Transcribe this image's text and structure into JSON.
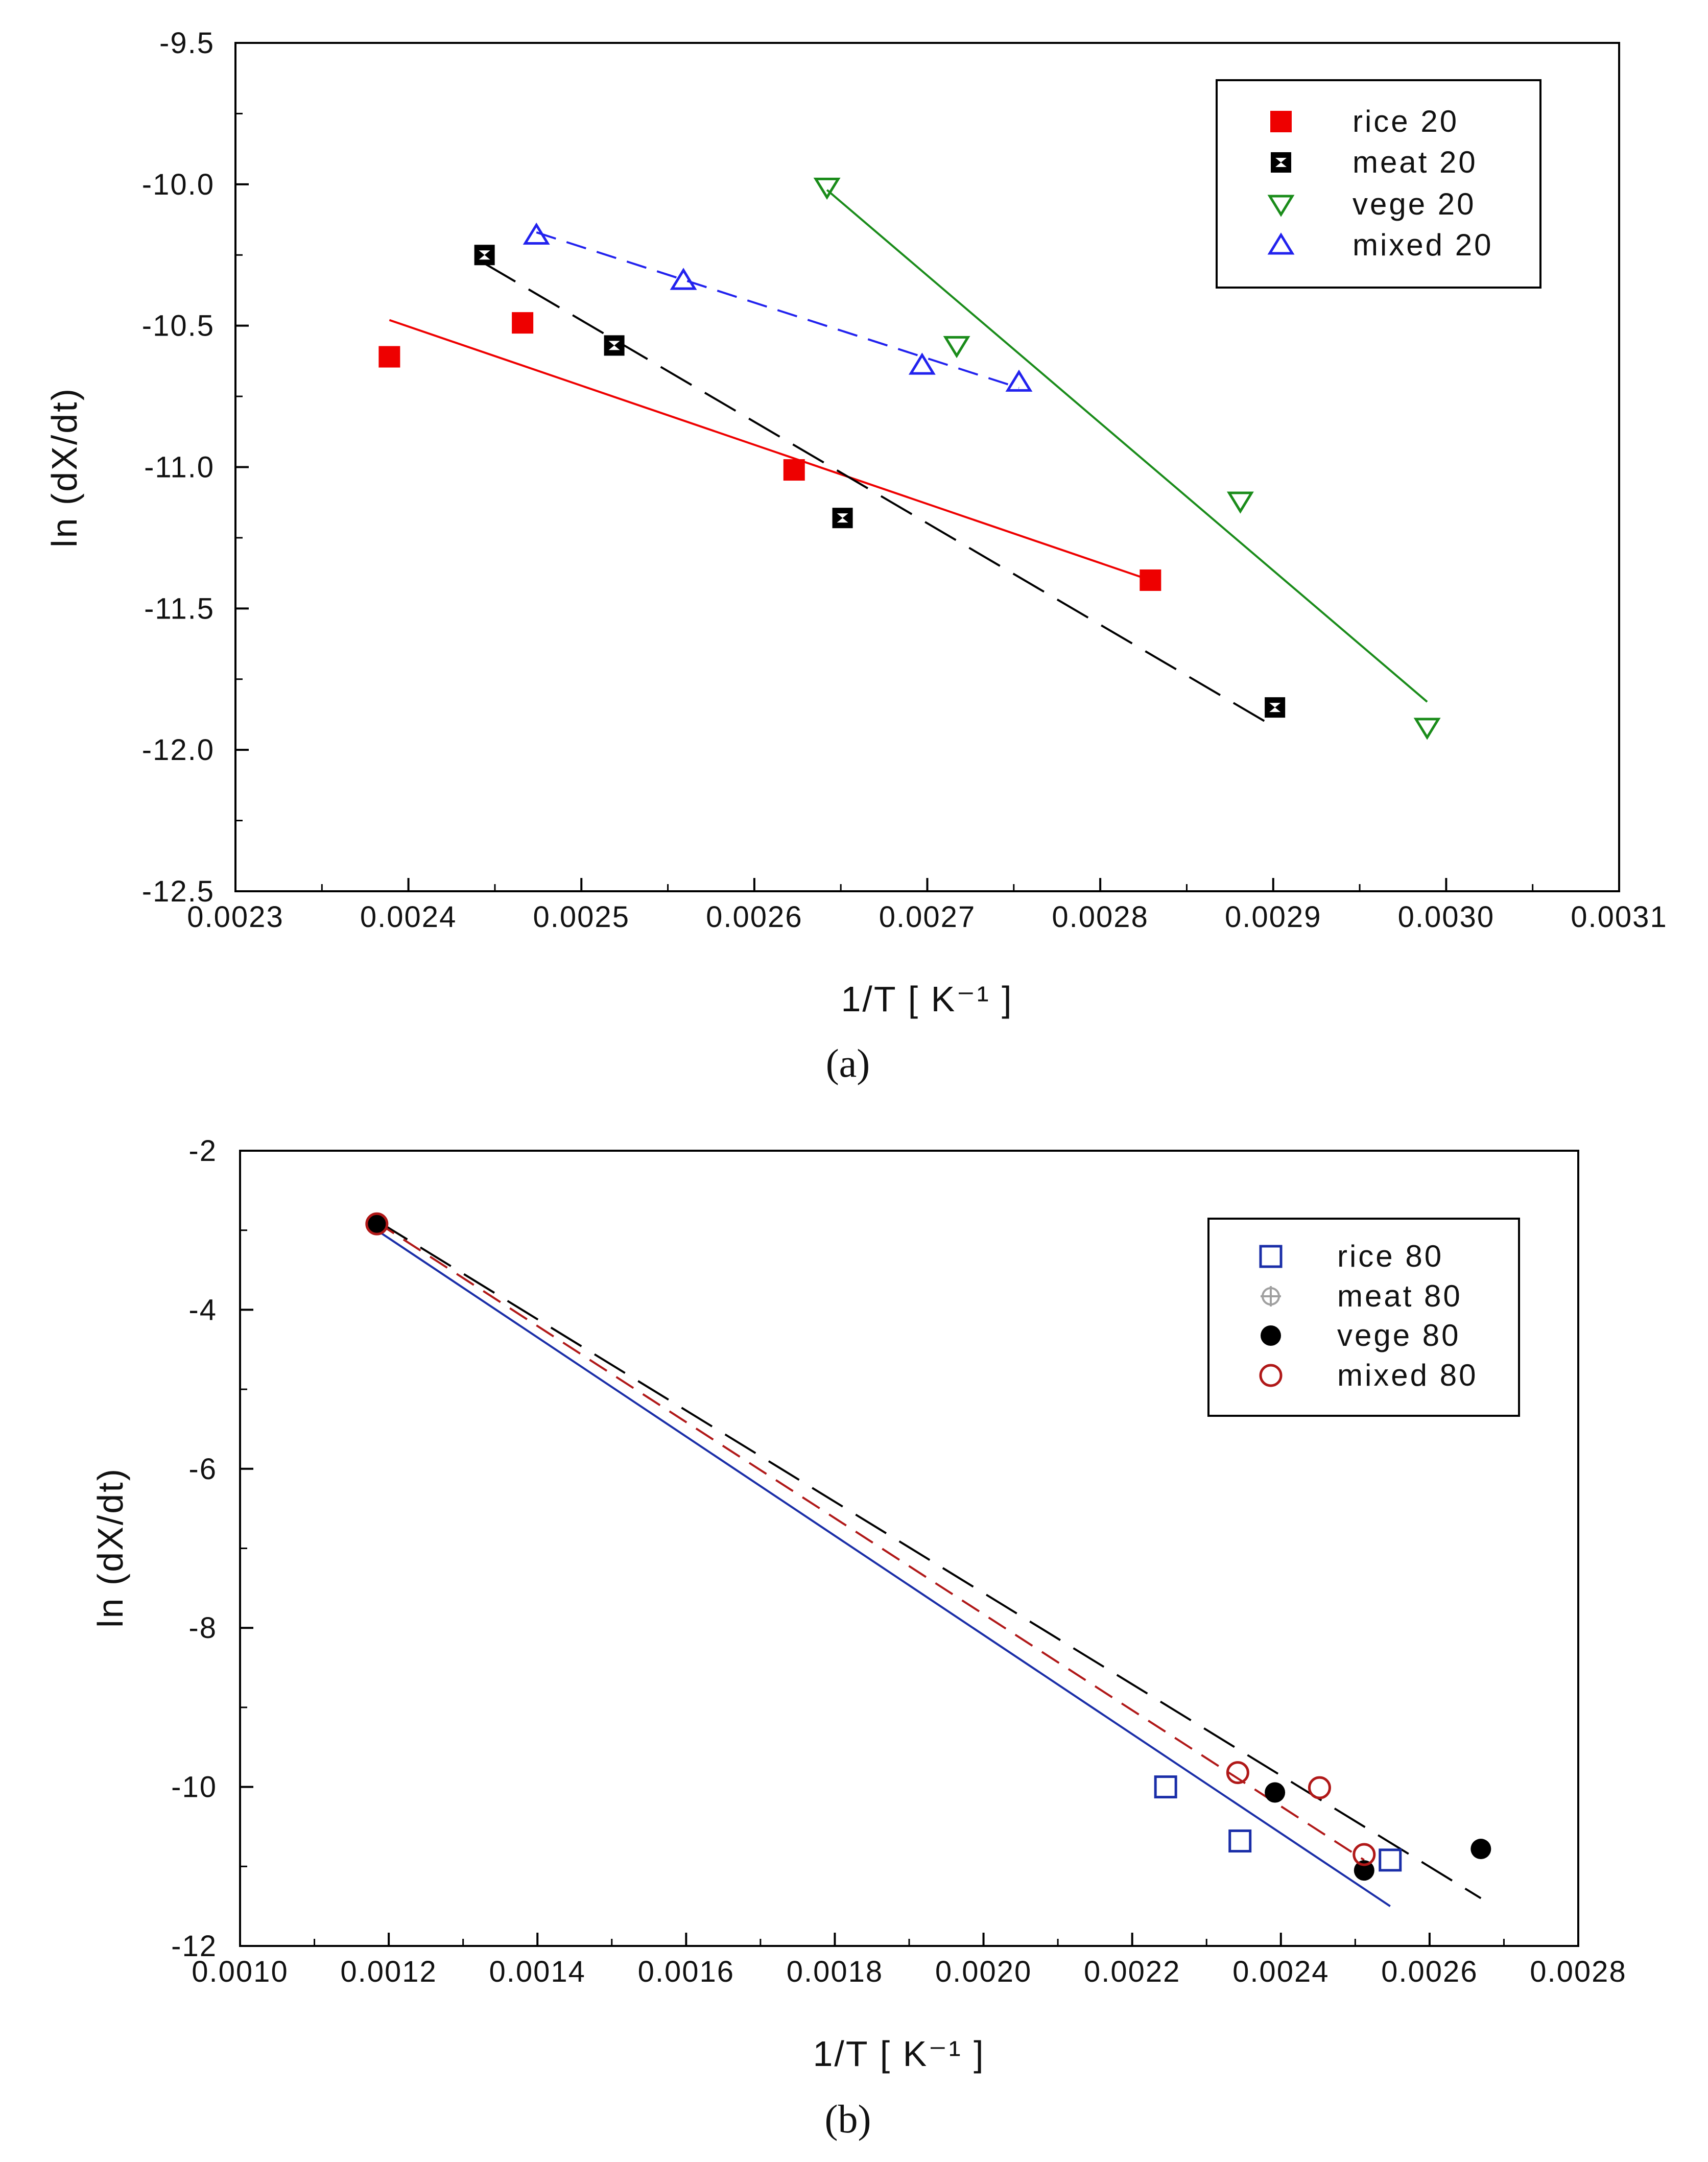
{
  "chart_data": [
    {
      "type": "scatter",
      "panel": "(a)",
      "xlabel": "1/T [ K⁻¹ ]",
      "ylabel": "ln (dX/dt)",
      "xlim": [
        0.0023,
        0.0031
      ],
      "ylim": [
        -12.5,
        -9.5
      ],
      "x_ticks": [
        "0.0023",
        "0.0024",
        "0.0025",
        "0.0026",
        "0.0027",
        "0.0028",
        "0.0029",
        "0.0030",
        "0.0031"
      ],
      "y_ticks": [
        "-9.5",
        "-10.0",
        "-10.5",
        "-11.0",
        "-11.5",
        "-12.0",
        "-12.5"
      ],
      "grid": false,
      "legend_position": "top-right",
      "series": [
        {
          "name": "rice 20",
          "marker": "filled-square",
          "color": "#ee0000",
          "line": "solid",
          "points": [
            [
              0.002389,
              -10.61
            ],
            [
              0.002466,
              -10.49
            ],
            [
              0.002623,
              -11.01
            ],
            [
              0.002829,
              -11.4
            ]
          ],
          "fit": [
            [
              0.002389,
              -10.48
            ],
            [
              0.002829,
              -11.4
            ]
          ]
        },
        {
          "name": "meat 20",
          "marker": "crossed-square",
          "color": "#000000",
          "line": "long-dash",
          "points": [
            [
              0.002444,
              -10.25
            ],
            [
              0.002519,
              -10.57
            ],
            [
              0.002651,
              -11.18
            ],
            [
              0.002901,
              -11.85
            ]
          ],
          "fit": [
            [
              0.002444,
              -10.28
            ],
            [
              0.002901,
              -11.92
            ]
          ]
        },
        {
          "name": "vege 20",
          "marker": "open-triangle-down",
          "color": "#1a8c1a",
          "line": "solid",
          "points": [
            [
              0.002642,
              -10.01
            ],
            [
              0.002717,
              -10.57
            ],
            [
              0.002881,
              -11.12
            ],
            [
              0.002989,
              -11.92
            ]
          ],
          "fit": [
            [
              0.002642,
              -10.02
            ],
            [
              0.002989,
              -11.83
            ]
          ]
        },
        {
          "name": "mixed 20",
          "marker": "open-triangle-up",
          "color": "#2222ee",
          "line": "dash",
          "points": [
            [
              0.002474,
              -10.18
            ],
            [
              0.002559,
              -10.34
            ],
            [
              0.002697,
              -10.64
            ],
            [
              0.002753,
              -10.7
            ]
          ],
          "fit": [
            [
              0.002474,
              -10.17
            ],
            [
              0.002753,
              -10.72
            ]
          ]
        }
      ]
    },
    {
      "type": "scatter",
      "panel": "(b)",
      "xlabel": "1/T [ K⁻¹ ]",
      "ylabel": "ln (dX/dt)",
      "xlim": [
        0.001,
        0.0028
      ],
      "ylim": [
        -12,
        -2
      ],
      "x_ticks": [
        "0.0010",
        "0.0012",
        "0.0014",
        "0.0016",
        "0.0018",
        "0.0020",
        "0.0022",
        "0.0024",
        "0.0026",
        "0.0028"
      ],
      "y_ticks": [
        "-2",
        "-4",
        "-6",
        "-8",
        "-10",
        "-12"
      ],
      "grid": false,
      "legend_position": "top-right",
      "series": [
        {
          "name": "rice 80",
          "marker": "open-square",
          "color": "#1a2ea8",
          "line": "solid",
          "points": [
            [
              0.002245,
              -10.0
            ],
            [
              0.002345,
              -10.68
            ],
            [
              0.002547,
              -10.92
            ]
          ],
          "fit": [
            [
              0.001184,
              -3.0
            ],
            [
              0.002547,
              -11.5
            ]
          ]
        },
        {
          "name": "meat 80",
          "marker": "crosshair-circle",
          "color": "#a0a0a0",
          "line": "none",
          "points": [
            [
              0.001184,
              -2.92
            ]
          ],
          "fit": []
        },
        {
          "name": "vege 80",
          "marker": "filled-circle",
          "color": "#000000",
          "line": "long-dash",
          "points": [
            [
              0.001184,
              -2.92
            ],
            [
              0.002392,
              -10.07
            ],
            [
              0.002512,
              -11.05
            ],
            [
              0.002669,
              -10.78
            ]
          ],
          "fit": [
            [
              0.001184,
              -2.88
            ],
            [
              0.002669,
              -11.4
            ]
          ]
        },
        {
          "name": "mixed 80",
          "marker": "open-circle",
          "color": "#b01818",
          "line": "dash",
          "points": [
            [
              0.001184,
              -2.92
            ],
            [
              0.002342,
              -9.82
            ],
            [
              0.002452,
              -10.01
            ],
            [
              0.002512,
              -10.85
            ]
          ],
          "fit": [
            [
              0.001184,
              -2.9
            ],
            [
              0.002512,
              -10.92
            ]
          ]
        }
      ]
    }
  ]
}
